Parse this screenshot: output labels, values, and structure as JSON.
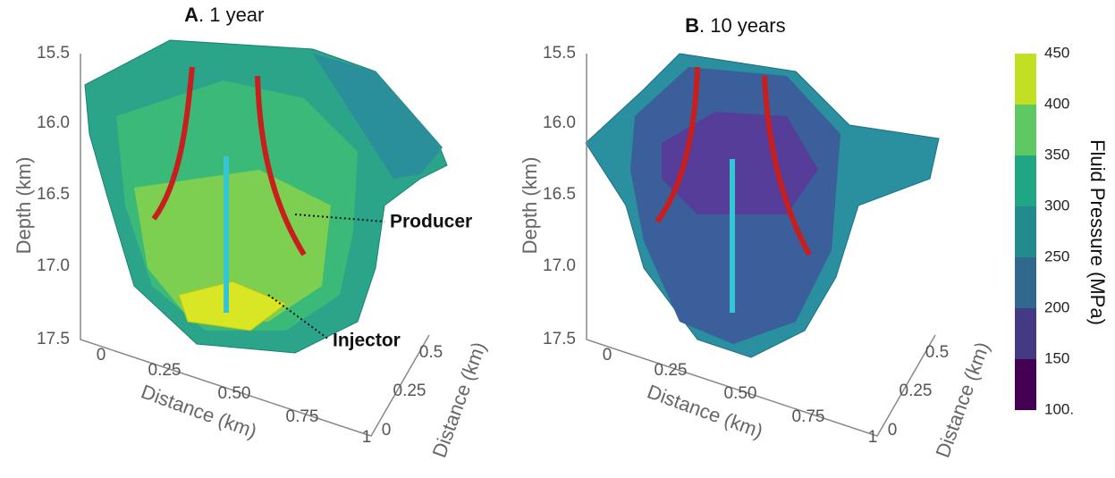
{
  "panels": [
    {
      "label": "A",
      "title": ". 1 year",
      "depth_label": "Depth (km)",
      "depth_ticks": [
        "15.5",
        "16.0",
        "16.5",
        "17.0",
        "17.5"
      ],
      "x_label": "Distance (km)",
      "x_ticks": [
        "0",
        "0.25",
        "0.50",
        "0.75",
        "1"
      ],
      "y_label": "Distance (km)",
      "y_ticks": [
        "0",
        "0.25",
        "0.5"
      ],
      "annotations": [
        "Producer",
        "Injector"
      ]
    },
    {
      "label": "B",
      "title": ". 10 years",
      "depth_label": "Depth (km)",
      "depth_ticks": [
        "15.5",
        "16.0",
        "16.5",
        "17.0",
        "17.5"
      ],
      "x_label": "Distance (km)",
      "x_ticks": [
        "0",
        "0.25",
        "0.50",
        "0.75",
        "1"
      ],
      "y_label": "Distance (km)",
      "y_ticks": [
        "0",
        "0.25",
        "0.5"
      ]
    }
  ],
  "colorbar": {
    "label": "Fluid Pressure (MPa)",
    "ticks": [
      "450",
      "400",
      "350",
      "300",
      "250",
      "200",
      "150",
      "100."
    ]
  }
}
